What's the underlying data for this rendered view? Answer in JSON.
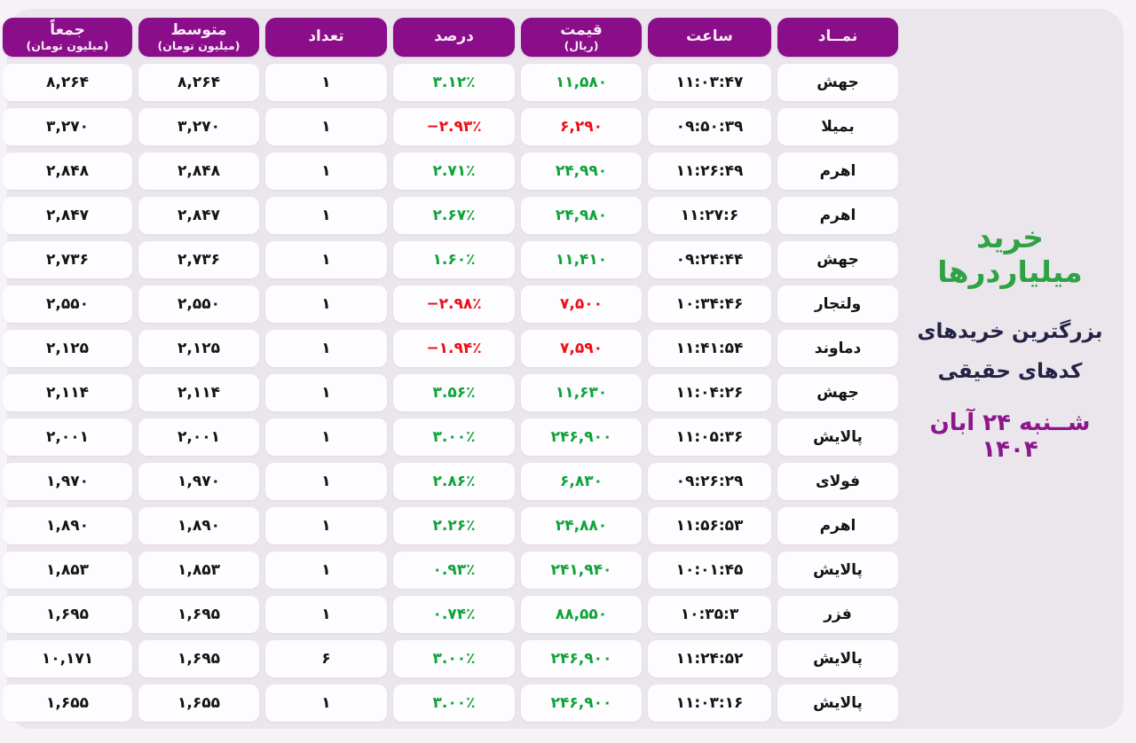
{
  "page": {
    "outer_bg": "#f6f3f6",
    "panel_bg": "#ebe5ec",
    "header_bg": "#8a0d8a",
    "positive_color": "#0fa338",
    "negative_color": "#ee0f15"
  },
  "side_panel": {
    "title": "خرید میلیاردرها",
    "title_color": "#2fa344",
    "subtitle_line1": "بزرگترین خریدهای",
    "subtitle_line2": "کدهای حقیقی",
    "date": "شــنبه ۲۴ آبان ۱۴۰۴",
    "date_color": "#8c168c"
  },
  "table": {
    "headers": [
      {
        "label": "نمــاد",
        "sub": ""
      },
      {
        "label": "ساعت",
        "sub": ""
      },
      {
        "label": "قیمت",
        "sub": "(ریال)"
      },
      {
        "label": "درصد",
        "sub": ""
      },
      {
        "label": "تعداد",
        "sub": ""
      },
      {
        "label": "متوسط",
        "sub": "(میلیون تومان)"
      },
      {
        "label": "جمعاً",
        "sub": "(میلیون تومان)"
      }
    ],
    "rows": [
      {
        "symbol": "جهش",
        "time": "۱۱:۰۳:۴۷",
        "price": "۱۱,۵۸۰",
        "price_trend": "up",
        "percent": "۳.۱۲٪",
        "percent_trend": "up",
        "count": "۱",
        "average": "۸,۲۶۴",
        "total": "۸,۲۶۴"
      },
      {
        "symbol": "بمیلا",
        "time": "۰۹:۵۰:۳۹",
        "price": "۶,۲۹۰",
        "price_trend": "down",
        "percent": "−۲.۹۳٪",
        "percent_trend": "down",
        "count": "۱",
        "average": "۳,۲۷۰",
        "total": "۳,۲۷۰"
      },
      {
        "symbol": "اهرم",
        "time": "۱۱:۲۶:۴۹",
        "price": "۲۴,۹۹۰",
        "price_trend": "up",
        "percent": "۲.۷۱٪",
        "percent_trend": "up",
        "count": "۱",
        "average": "۲,۸۴۸",
        "total": "۲,۸۴۸"
      },
      {
        "symbol": "اهرم",
        "time": "۱۱:۲۷:۶",
        "price": "۲۴,۹۸۰",
        "price_trend": "up",
        "percent": "۲.۶۷٪",
        "percent_trend": "up",
        "count": "۱",
        "average": "۲,۸۴۷",
        "total": "۲,۸۴۷"
      },
      {
        "symbol": "جهش",
        "time": "۰۹:۲۴:۴۴",
        "price": "۱۱,۴۱۰",
        "price_trend": "up",
        "percent": "۱.۶۰٪",
        "percent_trend": "up",
        "count": "۱",
        "average": "۲,۷۳۶",
        "total": "۲,۷۳۶"
      },
      {
        "symbol": "ولتجار",
        "time": "۱۰:۳۴:۴۶",
        "price": "۷,۵۰۰",
        "price_trend": "down",
        "percent": "−۲.۹۸٪",
        "percent_trend": "down",
        "count": "۱",
        "average": "۲,۵۵۰",
        "total": "۲,۵۵۰"
      },
      {
        "symbol": "دماوند",
        "time": "۱۱:۴۱:۵۴",
        "price": "۷,۵۹۰",
        "price_trend": "down",
        "percent": "−۱.۹۴٪",
        "percent_trend": "down",
        "count": "۱",
        "average": "۲,۱۲۵",
        "total": "۲,۱۲۵"
      },
      {
        "symbol": "جهش",
        "time": "۱۱:۰۴:۲۶",
        "price": "۱۱,۶۳۰",
        "price_trend": "up",
        "percent": "۳.۵۶٪",
        "percent_trend": "up",
        "count": "۱",
        "average": "۲,۱۱۴",
        "total": "۲,۱۱۴"
      },
      {
        "symbol": "پالایش",
        "time": "۱۱:۰۵:۳۶",
        "price": "۲۴۶,۹۰۰",
        "price_trend": "up",
        "percent": "۳.۰۰٪",
        "percent_trend": "up",
        "count": "۱",
        "average": "۲,۰۰۱",
        "total": "۲,۰۰۱"
      },
      {
        "symbol": "فولای",
        "time": "۰۹:۲۶:۲۹",
        "price": "۶,۸۳۰",
        "price_trend": "up",
        "percent": "۲.۸۶٪",
        "percent_trend": "up",
        "count": "۱",
        "average": "۱,۹۷۰",
        "total": "۱,۹۷۰"
      },
      {
        "symbol": "اهرم",
        "time": "۱۱:۵۶:۵۳",
        "price": "۲۴,۸۸۰",
        "price_trend": "up",
        "percent": "۲.۲۶٪",
        "percent_trend": "up",
        "count": "۱",
        "average": "۱,۸۹۰",
        "total": "۱,۸۹۰"
      },
      {
        "symbol": "پالایش",
        "time": "۱۰:۰۱:۴۵",
        "price": "۲۴۱,۹۴۰",
        "price_trend": "up",
        "percent": "۰.۹۳٪",
        "percent_trend": "up",
        "count": "۱",
        "average": "۱,۸۵۳",
        "total": "۱,۸۵۳"
      },
      {
        "symbol": "فزر",
        "time": "۱۰:۳۵:۳",
        "price": "۸۸,۵۵۰",
        "price_trend": "up",
        "percent": "۰.۷۴٪",
        "percent_trend": "up",
        "count": "۱",
        "average": "۱,۶۹۵",
        "total": "۱,۶۹۵"
      },
      {
        "symbol": "پالایش",
        "time": "۱۱:۲۴:۵۲",
        "price": "۲۴۶,۹۰۰",
        "price_trend": "up",
        "percent": "۳.۰۰٪",
        "percent_trend": "up",
        "count": "۶",
        "average": "۱,۶۹۵",
        "total": "۱۰,۱۷۱"
      },
      {
        "symbol": "پالایش",
        "time": "۱۱:۰۳:۱۶",
        "price": "۲۴۶,۹۰۰",
        "price_trend": "up",
        "percent": "۳.۰۰٪",
        "percent_trend": "up",
        "count": "۱",
        "average": "۱,۶۵۵",
        "total": "۱,۶۵۵"
      }
    ]
  },
  "chart_data": {
    "type": "table",
    "title": "خرید میلیاردرها - بزرگترین خریدهای کدهای حقیقی - شنبه ۲۴ آبان ۱۴۰۴",
    "columns": [
      "نماد",
      "ساعت",
      "قیمت (ریال)",
      "درصد",
      "تعداد",
      "متوسط (میلیون تومان)",
      "جمعاً (میلیون تومان)"
    ],
    "rows": [
      [
        "جهش",
        "11:03:47",
        11580,
        3.12,
        1,
        8264,
        8264
      ],
      [
        "بمیلا",
        "09:50:39",
        6290,
        -2.93,
        1,
        3270,
        3270
      ],
      [
        "اهرم",
        "11:26:49",
        24990,
        2.71,
        1,
        2848,
        2848
      ],
      [
        "اهرم",
        "11:27:6",
        24980,
        2.67,
        1,
        2847,
        2847
      ],
      [
        "جهش",
        "09:24:44",
        11410,
        1.6,
        1,
        2736,
        2736
      ],
      [
        "ولتجار",
        "10:34:46",
        7500,
        -2.98,
        1,
        2550,
        2550
      ],
      [
        "دماوند",
        "11:41:54",
        7590,
        -1.94,
        1,
        2125,
        2125
      ],
      [
        "جهش",
        "11:04:26",
        11630,
        3.56,
        1,
        2114,
        2114
      ],
      [
        "پالایش",
        "11:05:36",
        246900,
        3.0,
        1,
        2001,
        2001
      ],
      [
        "فولای",
        "09:26:29",
        6830,
        2.86,
        1,
        1970,
        1970
      ],
      [
        "اهرم",
        "11:56:53",
        24880,
        2.26,
        1,
        1890,
        1890
      ],
      [
        "پالایش",
        "10:01:45",
        241940,
        0.93,
        1,
        1853,
        1853
      ],
      [
        "فزر",
        "10:35:3",
        88550,
        0.74,
        1,
        1695,
        1695
      ],
      [
        "پالایش",
        "11:24:52",
        246900,
        3.0,
        6,
        1695,
        10171
      ],
      [
        "پالایش",
        "11:03:16",
        246900,
        3.0,
        1,
        1655,
        1655
      ]
    ]
  }
}
